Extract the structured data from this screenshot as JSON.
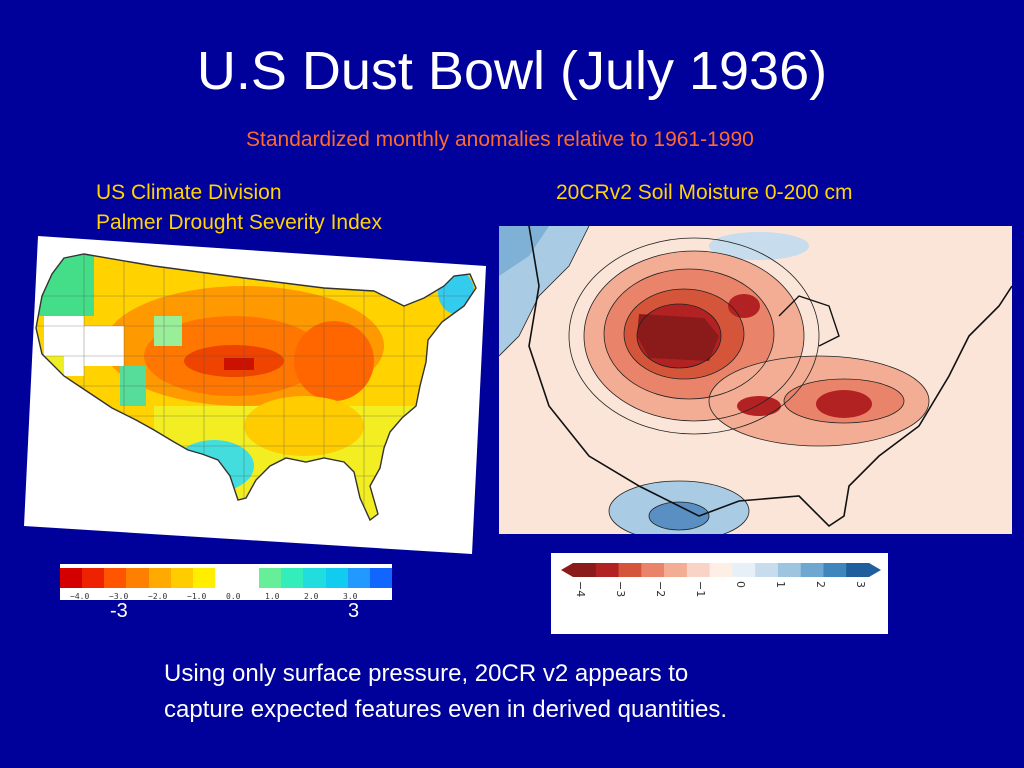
{
  "slide": {
    "title": "U.S Dust Bowl (July 1936)",
    "subtitle": "Standardized monthly anomalies relative to 1961-1990",
    "left_caption_line1": "US Climate Division",
    "left_caption_line2": "Palmer Drought Severity Index",
    "right_caption": "20CRv2 Soil Moisture 0-200 cm",
    "note_line1": "Using only surface pressure, 20CR v2 appears to",
    "note_line2": "capture expected features even in derived quantities."
  },
  "pdsi_legend": {
    "colors": [
      "#d40000",
      "#ee2200",
      "#ff5500",
      "#ff7f00",
      "#ffaa00",
      "#ffcc00",
      "#ffee00",
      "#ffffff",
      "#ffffff",
      "#66ee99",
      "#33eebb",
      "#22dddd",
      "#11ccee",
      "#2299ff",
      "#1166ff"
    ],
    "tick_labels": [
      "−4.0",
      "−3.0",
      "−2.0",
      "−1.0",
      "0.0",
      "1.0",
      "2.0",
      "3.0"
    ],
    "end_labels": [
      "-3",
      "3"
    ]
  },
  "soil_legend": {
    "colors": [
      "#8b1a1a",
      "#b22222",
      "#d4553a",
      "#e9846a",
      "#f4ad95",
      "#f9d3c5",
      "#fdeee6",
      "#e7f0f7",
      "#c7dced",
      "#9ec5e0",
      "#6ea8d0",
      "#3f86bd",
      "#1f5f9e"
    ],
    "tick_labels": [
      "−4",
      "−3",
      "−2",
      "−1",
      "0",
      "1",
      "2",
      "3"
    ]
  }
}
